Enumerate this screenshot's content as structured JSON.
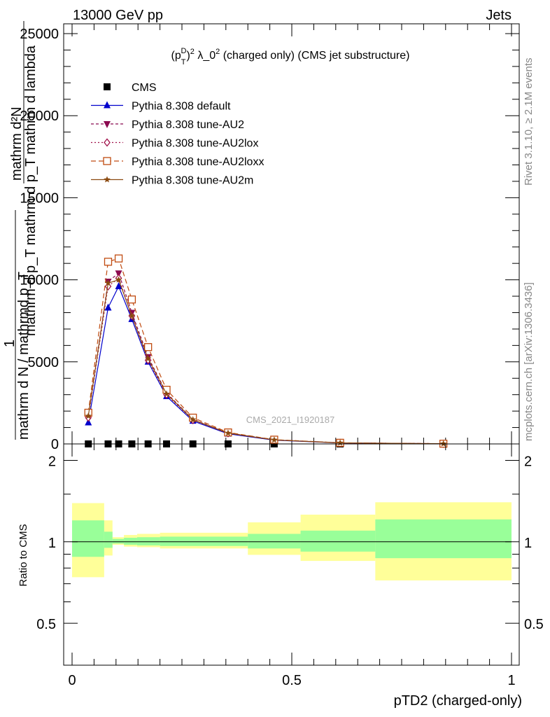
{
  "header": {
    "left": "13000 GeV pp",
    "right": "Jets"
  },
  "plot_title": {
    "p": "(p",
    "sub": "T",
    "sup": "D",
    "rest": ")",
    "sq": "2",
    "lambda": " λ_0",
    "sq2": "2",
    "tail": " (charged only) (CMS jet substructure)"
  },
  "side_labels": {
    "rivet": "Rivet 3.1.10, ≥ 2.1M events",
    "mcplots": "mcplots.cern.ch [arXiv:1306.3436]"
  },
  "watermark": "CMS_2021_I1920187",
  "ylabel_main": {
    "top_num": "mathrm d²N",
    "top_den": "mathrm d p_T mathrm d p_T mathrm d lambda",
    "one": "1",
    "bottom": "mathrm d N / mathrmd p_T"
  },
  "ylabel_ratio": "Ratio to CMS",
  "xlabel": "pTD2 (charged-only)",
  "chart_data": [
    {
      "type": "line",
      "panel": "main",
      "xlim": [
        0,
        1
      ],
      "ylim": [
        0,
        25000
      ],
      "y_ticks": [
        "0",
        "5000",
        "10000",
        "15000",
        "20000",
        "25000"
      ],
      "legend_placement": "top-left",
      "series": [
        {
          "name": "CMS",
          "marker": "filled-square",
          "color": "#000000",
          "x": [
            0.037,
            0.082,
            0.106,
            0.136,
            0.173,
            0.215,
            0.275,
            0.355,
            0.46,
            0.61,
            0.845
          ],
          "y": [
            0,
            0,
            0,
            0,
            0,
            0,
            0,
            0,
            0,
            0,
            0
          ]
        },
        {
          "name": "Pythia 8.308 default",
          "marker": "filled-triangle-up",
          "color": "#0000cc",
          "x": [
            0.037,
            0.082,
            0.106,
            0.136,
            0.173,
            0.215,
            0.275,
            0.355,
            0.46,
            0.61,
            0.845
          ],
          "y": [
            1300,
            8300,
            9600,
            7600,
            5000,
            2900,
            1400,
            620,
            230,
            60,
            10
          ]
        },
        {
          "name": "Pythia 8.308 tune-AU2",
          "marker": "filled-triangle-down",
          "color": "#8b0a50",
          "x": [
            0.037,
            0.082,
            0.106,
            0.136,
            0.173,
            0.215,
            0.275,
            0.355,
            0.46,
            0.61,
            0.845
          ],
          "y": [
            1700,
            9900,
            10400,
            8000,
            5300,
            3100,
            1500,
            670,
            250,
            65,
            12
          ]
        },
        {
          "name": "Pythia 8.308 tune-AU2lox",
          "marker": "open-diamond",
          "color": "#a0114a",
          "x": [
            0.037,
            0.082,
            0.106,
            0.136,
            0.173,
            0.215,
            0.275,
            0.355,
            0.46,
            0.61,
            0.845
          ],
          "y": [
            1600,
            9600,
            10100,
            7800,
            5100,
            3000,
            1450,
            650,
            240,
            62,
            11
          ]
        },
        {
          "name": "Pythia 8.308 tune-AU2loxx",
          "marker": "open-square",
          "color": "#c04b10",
          "x": [
            0.037,
            0.082,
            0.106,
            0.136,
            0.173,
            0.215,
            0.275,
            0.355,
            0.46,
            0.61,
            0.845
          ],
          "y": [
            1900,
            11100,
            11300,
            8800,
            5900,
            3300,
            1600,
            700,
            260,
            70,
            14
          ]
        },
        {
          "name": "Pythia 8.308 tune-AU2m",
          "marker": "filled-star",
          "color": "#8b4a10",
          "x": [
            0.037,
            0.082,
            0.106,
            0.136,
            0.173,
            0.215,
            0.275,
            0.355,
            0.46,
            0.61,
            0.845
          ],
          "y": [
            1700,
            9800,
            10000,
            7800,
            5200,
            3050,
            1480,
            660,
            245,
            64,
            12
          ]
        }
      ]
    },
    {
      "type": "area",
      "panel": "ratio",
      "xlim": [
        0,
        1
      ],
      "ylim": [
        0.35,
        2.3
      ],
      "y_ticks": [
        "0.5",
        "1",
        "2"
      ],
      "x_ticks": [
        "0",
        "0.5",
        "1"
      ],
      "reference_line": 1,
      "bins": [
        {
          "x0": 0.0,
          "x1": 0.073,
          "inner": [
            0.88,
            1.2
          ],
          "outer": [
            0.74,
            1.39
          ]
        },
        {
          "x0": 0.073,
          "x1": 0.092,
          "inner": [
            0.95,
            1.09
          ],
          "outer": [
            0.89,
            1.2
          ]
        },
        {
          "x0": 0.092,
          "x1": 0.118,
          "inner": [
            0.985,
            1.025
          ],
          "outer": [
            0.975,
            1.04
          ]
        },
        {
          "x0": 0.118,
          "x1": 0.148,
          "inner": [
            0.975,
            1.035
          ],
          "outer": [
            0.96,
            1.06
          ]
        },
        {
          "x0": 0.148,
          "x1": 0.2,
          "inner": [
            0.97,
            1.04
          ],
          "outer": [
            0.955,
            1.07
          ]
        },
        {
          "x0": 0.2,
          "x1": 0.4,
          "inner": [
            0.965,
            1.045
          ],
          "outer": [
            0.945,
            1.08
          ]
        },
        {
          "x0": 0.4,
          "x1": 0.52,
          "inner": [
            0.945,
            1.07
          ],
          "outer": [
            0.895,
            1.18
          ]
        },
        {
          "x0": 0.52,
          "x1": 0.69,
          "inner": [
            0.92,
            1.1
          ],
          "outer": [
            0.85,
            1.26
          ]
        },
        {
          "x0": 0.69,
          "x1": 1.0,
          "inner": [
            0.87,
            1.21
          ],
          "outer": [
            0.72,
            1.4
          ]
        }
      ]
    }
  ]
}
